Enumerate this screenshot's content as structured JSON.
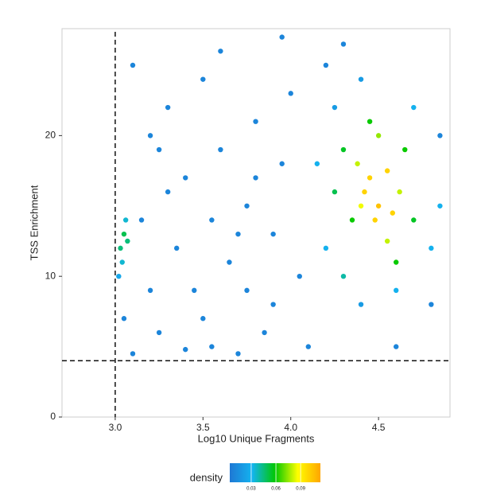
{
  "chart_data": {
    "type": "scatter",
    "x_label": "Log10 Unique Fragments",
    "y_label": "TSS Enrichment",
    "xlim": [
      2.697,
      4.907
    ],
    "ylim": [
      0,
      27.6
    ],
    "xticks": [
      {
        "value": 3,
        "label": "3.0"
      },
      {
        "value": 3.5,
        "label": "3.5"
      },
      {
        "value": 4,
        "label": "4.0"
      },
      {
        "value": 4.5,
        "label": "4.5"
      }
    ],
    "yticks": [
      0,
      10,
      20
    ],
    "vlines": [
      3
    ],
    "hlines": [
      4
    ],
    "color_label": "density",
    "colors": [
      "#1f78d4",
      "#13b4f0",
      "#00c800",
      "#ffff00",
      "#ffa500"
    ],
    "colorlim": [
      0.004,
      0.114
    ],
    "cticks": [
      0.03,
      0.06,
      0.09
    ],
    "x": [
      3.1,
      3.2,
      3.3,
      3.4,
      3.5,
      3.6,
      3.7,
      3.8,
      3.9,
      3.25,
      3.45,
      3.55,
      3.65,
      3.75,
      3.85,
      3.95,
      3.15,
      3.35,
      3.5,
      3.7,
      3.9,
      4.0,
      4.05,
      3.2,
      3.3,
      3.6,
      3.8,
      4.1,
      3.05,
      3.1,
      3.4,
      3.75,
      4.6,
      4.8,
      4.85,
      4.2,
      4.3,
      3.95,
      3.55,
      3.25,
      4.2,
      4.25,
      4.4,
      4.7,
      4.8,
      4.6,
      4.4,
      4.15,
      4.85,
      4.3,
      4.3,
      4.35,
      4.6,
      4.7,
      4.45,
      4.65,
      4.25,
      4.38,
      4.5,
      4.62,
      4.55,
      4.4,
      4.45,
      4.5,
      4.55,
      4.48,
      4.58,
      4.42,
      3.03,
      3.05,
      3.07,
      3.04,
      3.06,
      3.02
    ],
    "y": [
      25,
      20,
      22,
      17,
      24,
      19,
      13,
      21,
      8,
      6,
      9,
      5,
      11,
      15,
      6,
      18,
      14,
      12,
      7,
      4.5,
      13,
      23,
      10,
      9,
      16,
      26,
      17,
      5,
      7,
      4.5,
      4.8,
      9,
      5,
      8,
      20,
      25,
      26.5,
      27,
      14,
      19,
      12,
      22,
      24,
      22,
      12,
      9,
      8,
      18,
      15,
      10,
      19,
      14,
      11,
      14,
      21,
      19,
      16,
      18,
      20,
      16,
      12.5,
      15,
      17,
      15,
      17.5,
      14,
      14.5,
      16,
      12,
      13,
      12.5,
      11,
      14,
      10
    ],
    "density": [
      0.01,
      0.01,
      0.01,
      0.01,
      0.01,
      0.01,
      0.01,
      0.01,
      0.01,
      0.01,
      0.01,
      0.01,
      0.01,
      0.01,
      0.01,
      0.01,
      0.01,
      0.01,
      0.01,
      0.01,
      0.01,
      0.01,
      0.01,
      0.01,
      0.01,
      0.01,
      0.01,
      0.01,
      0.01,
      0.01,
      0.01,
      0.01,
      0.01,
      0.01,
      0.01,
      0.01,
      0.01,
      0.01,
      0.01,
      0.01,
      0.03,
      0.02,
      0.02,
      0.03,
      0.03,
      0.03,
      0.02,
      0.03,
      0.03,
      0.04,
      0.055,
      0.06,
      0.06,
      0.055,
      0.06,
      0.06,
      0.05,
      0.08,
      0.075,
      0.08,
      0.08,
      0.085,
      0.1,
      0.105,
      0.1,
      0.1,
      0.1,
      0.1,
      0.045,
      0.05,
      0.045,
      0.035,
      0.035,
      0.025
    ]
  }
}
